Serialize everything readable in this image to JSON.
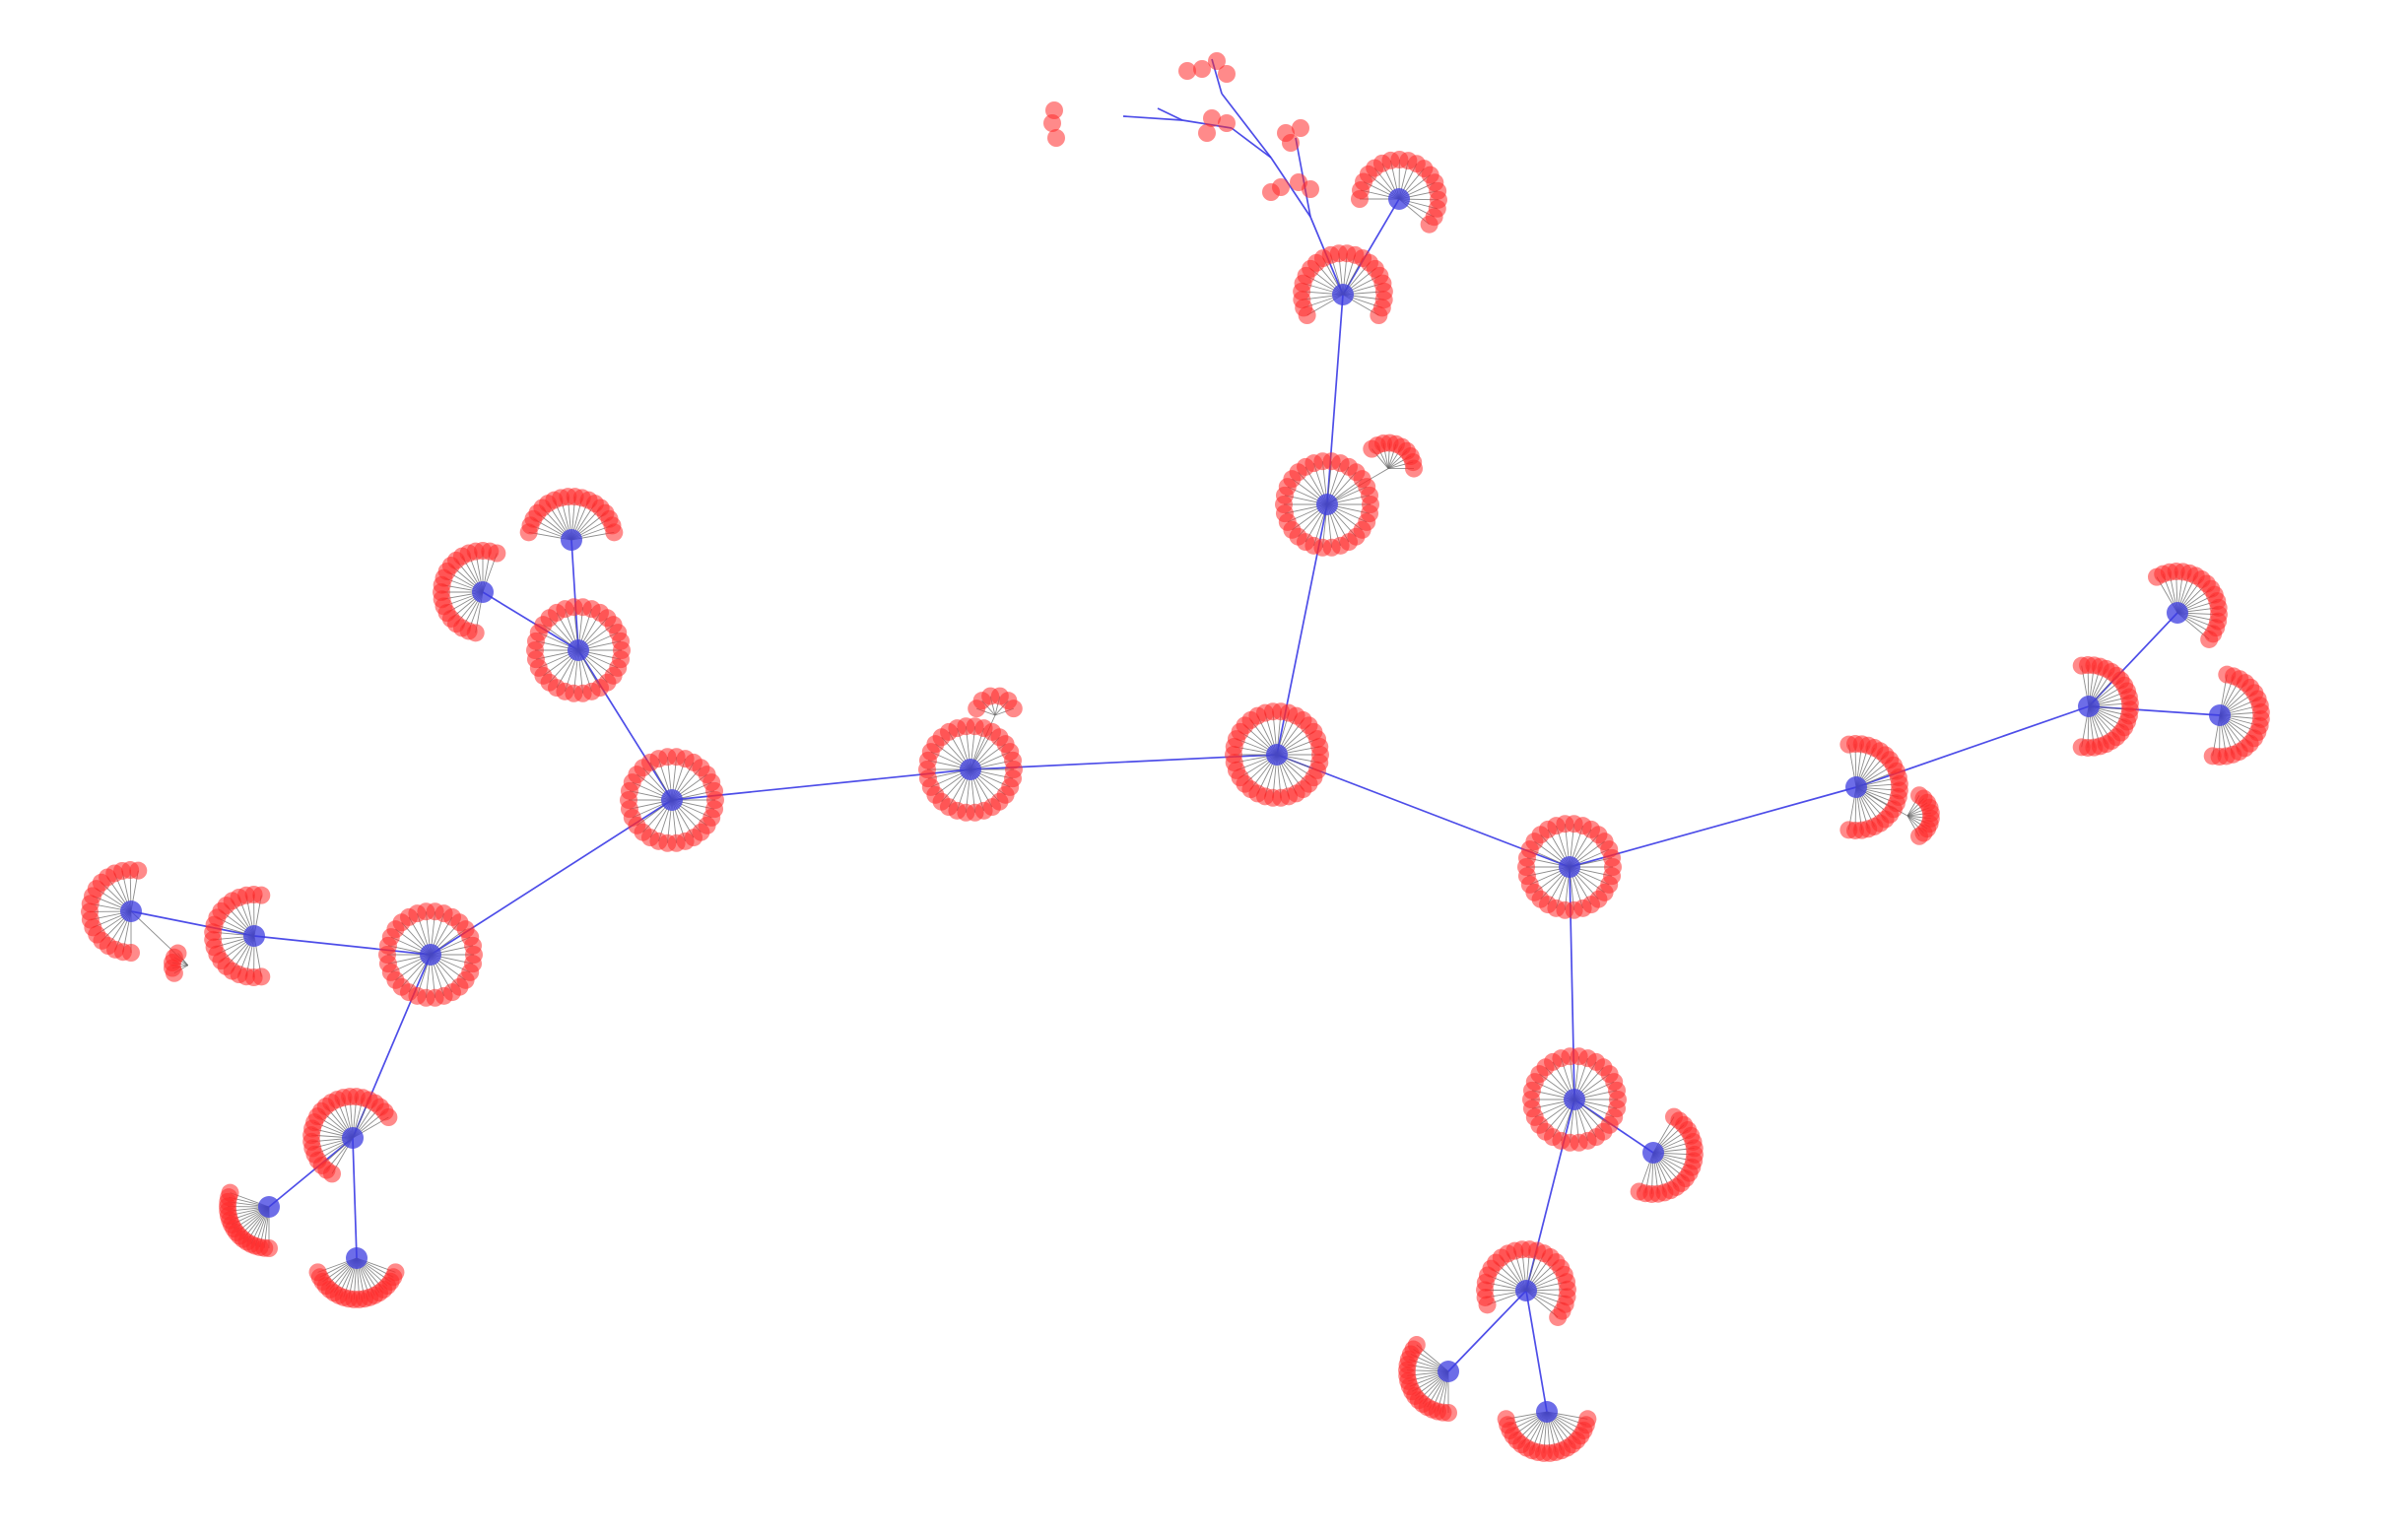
{
  "colors": {
    "background": "#ffffff",
    "hub_node": "#3c3ce0",
    "leaf_node": "#ff2a2a",
    "hub_edge": "#3a3ae6",
    "leaf_edge": "#666666"
  },
  "graph": {
    "hubs": [
      {
        "id": "center-a",
        "fan": "ring",
        "leaves": 34
      },
      {
        "id": "center-b",
        "fan": "ring",
        "leaves": 30
      },
      {
        "id": "left-center",
        "fan": "ring",
        "leaves": 30
      },
      {
        "id": "right-center",
        "fan": "ring",
        "leaves": 30
      },
      {
        "id": "upper-mid",
        "fan": "ring",
        "leaves": 30
      },
      {
        "id": "top-hub",
        "fan": "arc",
        "leaves": 22
      },
      {
        "id": "top-right-fan",
        "fan": "arc",
        "leaves": 18
      },
      {
        "id": "left-upper",
        "fan": "ring",
        "leaves": 30
      },
      {
        "id": "left-upper-a",
        "fan": "arc",
        "leaves": 18
      },
      {
        "id": "left-upper-b",
        "fan": "arc",
        "leaves": 20
      },
      {
        "id": "left-lower",
        "fan": "ring",
        "leaves": 30
      },
      {
        "id": "far-left-a",
        "fan": "arc",
        "leaves": 20
      },
      {
        "id": "far-left-b",
        "fan": "arc",
        "leaves": 18
      },
      {
        "id": "lower-left",
        "fan": "arc",
        "leaves": 24
      },
      {
        "id": "lower-left-a",
        "fan": "arc",
        "leaves": 18
      },
      {
        "id": "lower-left-b",
        "fan": "arc",
        "leaves": 20
      },
      {
        "id": "right-mid",
        "fan": "arc",
        "leaves": 24
      },
      {
        "id": "right-far",
        "fan": "arc",
        "leaves": 24
      },
      {
        "id": "right-far-a",
        "fan": "arc",
        "leaves": 18
      },
      {
        "id": "right-far-b",
        "fan": "arc",
        "leaves": 20
      },
      {
        "id": "lower-right",
        "fan": "ring",
        "leaves": 30
      },
      {
        "id": "lower-right-a",
        "fan": "arc",
        "leaves": 20
      },
      {
        "id": "bottom-hub",
        "fan": "arc",
        "leaves": 24
      },
      {
        "id": "bottom-a",
        "fan": "arc",
        "leaves": 18
      },
      {
        "id": "bottom-b",
        "fan": "arc",
        "leaves": 20
      }
    ],
    "hub_edges": [
      [
        "center-a",
        "center-b"
      ],
      [
        "center-b",
        "left-center"
      ],
      [
        "center-a",
        "right-center"
      ],
      [
        "center-a",
        "upper-mid"
      ],
      [
        "upper-mid",
        "top-hub"
      ],
      [
        "top-hub",
        "top-right-fan"
      ],
      [
        "left-center",
        "left-upper"
      ],
      [
        "left-upper",
        "left-upper-a"
      ],
      [
        "left-upper",
        "left-upper-b"
      ],
      [
        "left-center",
        "left-lower"
      ],
      [
        "left-lower",
        "far-left-a"
      ],
      [
        "far-left-a",
        "far-left-b"
      ],
      [
        "left-lower",
        "lower-left"
      ],
      [
        "lower-left",
        "lower-left-a"
      ],
      [
        "lower-left",
        "lower-left-b"
      ],
      [
        "right-center",
        "right-mid"
      ],
      [
        "right-mid",
        "right-far"
      ],
      [
        "right-far",
        "right-far-a"
      ],
      [
        "right-far",
        "right-far-b"
      ],
      [
        "right-center",
        "lower-right"
      ],
      [
        "lower-right",
        "lower-right-a"
      ],
      [
        "lower-right",
        "bottom-hub"
      ],
      [
        "bottom-hub",
        "bottom-a"
      ],
      [
        "bottom-hub",
        "bottom-b"
      ]
    ]
  }
}
